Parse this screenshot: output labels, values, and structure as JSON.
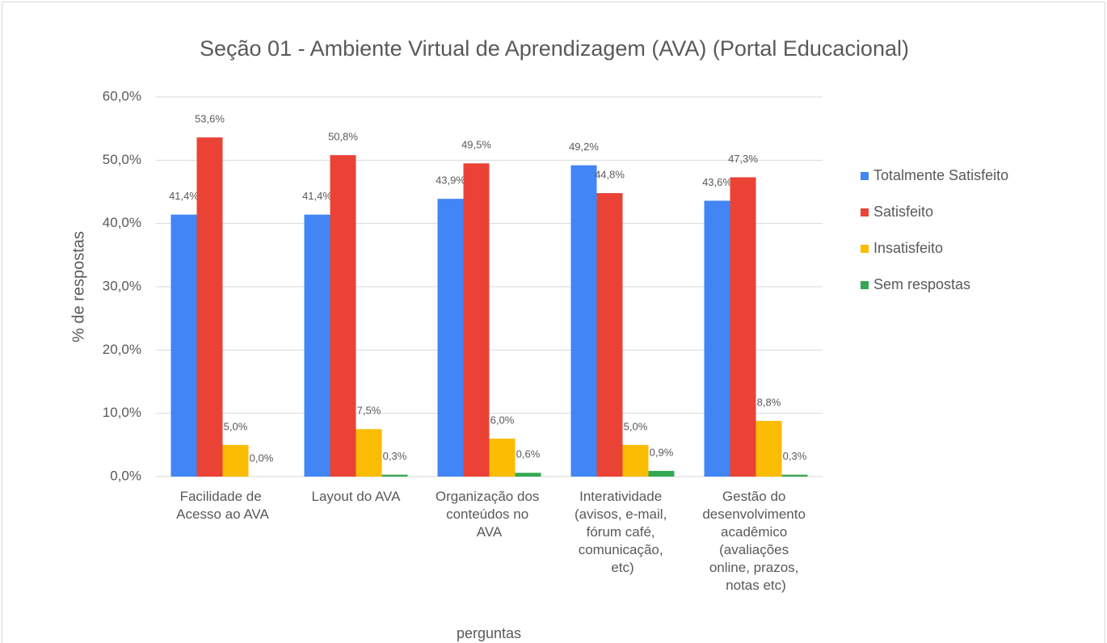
{
  "chart_data": {
    "type": "bar",
    "title": "Seção 01 - Ambiente Virtual de Aprendizagem (AVA) (Portal Educacional)",
    "y_label": "% de respostas",
    "x_label": "perguntas",
    "categories": [
      "Facilidade de\nAcesso ao AVA",
      "Layout do AVA",
      "Organização dos\nconteúdos no\nAVA",
      "Interatividade\n(avisos, e-mail,\nfórum café,\ncomunicação,\netc)",
      "Gestão do\ndesenvolvimento\nacadêmico\n(avaliações\nonline, prazos,\nnotas etc)"
    ],
    "series": [
      {
        "name": "Totalmente Satisfeito",
        "color": "#4285f4",
        "values": [
          41.4,
          41.4,
          43.9,
          49.2,
          43.6
        ],
        "value_labels": [
          "41,4%",
          "41,4%",
          "43,9%",
          "49,2%",
          "43,6%"
        ]
      },
      {
        "name": "Satisfeito",
        "color": "#ea4335",
        "values": [
          53.6,
          50.8,
          49.5,
          44.8,
          47.3
        ],
        "value_labels": [
          "53,6%",
          "50,8%",
          "49,5%",
          "44,8%",
          "47,3%"
        ]
      },
      {
        "name": "Insatisfeito",
        "color": "#fbbc04",
        "values": [
          5.0,
          7.5,
          6.0,
          5.0,
          8.8
        ],
        "value_labels": [
          "5,0%",
          "7,5%",
          "6,0%",
          "5,0%",
          "8,8%"
        ]
      },
      {
        "name": "Sem respostas",
        "color": "#34a853",
        "values": [
          0.0,
          0.3,
          0.6,
          0.9,
          0.3
        ],
        "value_labels": [
          "0,0%",
          "0,3%",
          "0,6%",
          "0,9%",
          "0,3%"
        ]
      }
    ],
    "ylim": [
      0,
      60
    ],
    "yticks": [
      {
        "value": 0,
        "label": "0,0%"
      },
      {
        "value": 10,
        "label": "10,0%"
      },
      {
        "value": 20,
        "label": "20,0%"
      },
      {
        "value": 30,
        "label": "30,0%"
      },
      {
        "value": 40,
        "label": "40,0%"
      },
      {
        "value": 50,
        "label": "50,0%"
      },
      {
        "value": 60,
        "label": "60,0%"
      }
    ],
    "grid": true,
    "legend": "right"
  }
}
